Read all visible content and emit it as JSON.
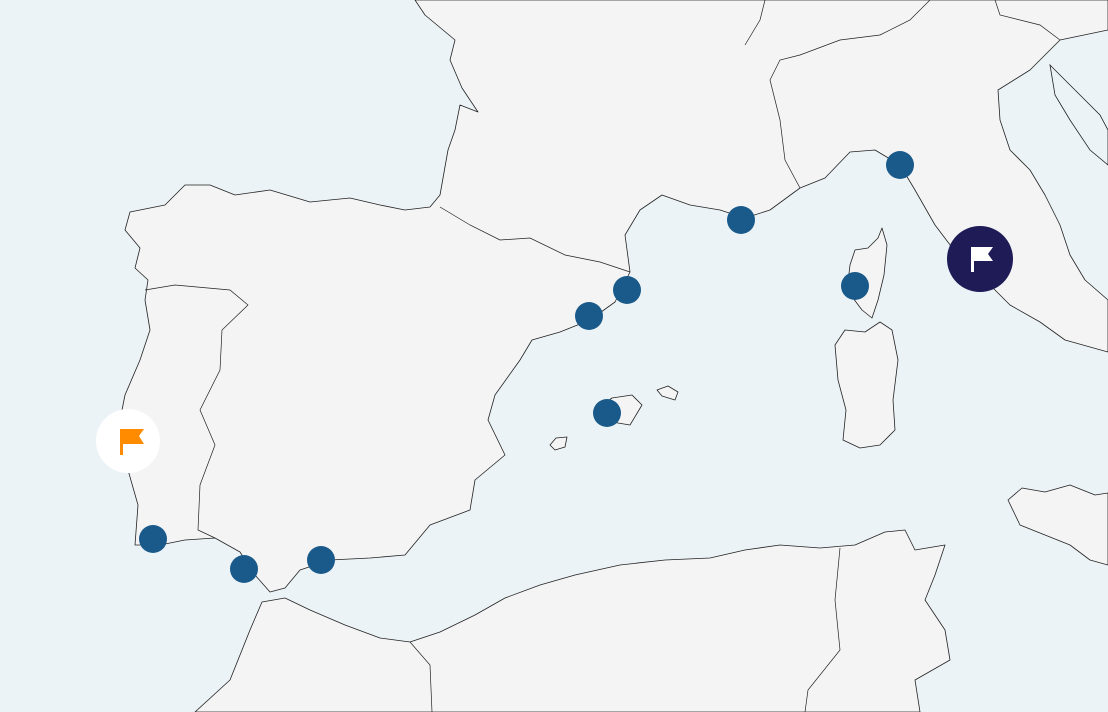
{
  "map": {
    "colors": {
      "land": "#f4f4f4",
      "sea": "#ebf3f7",
      "port_marker": "#1a5a8a",
      "start_flag": "#ff8c00",
      "end_marker": "#1e1b57"
    },
    "port_markers": [
      {
        "name": "port-lisbon-area",
        "icon": "circle"
      },
      {
        "name": "port-gibraltar-area",
        "icon": "circle"
      },
      {
        "name": "port-malaga-area",
        "icon": "circle"
      },
      {
        "name": "port-valencia-area",
        "icon": "circle"
      },
      {
        "name": "port-barcelona-area",
        "icon": "circle"
      },
      {
        "name": "port-mallorca",
        "icon": "circle"
      },
      {
        "name": "port-marseille-area",
        "icon": "circle"
      },
      {
        "name": "port-genoa-area",
        "icon": "circle"
      },
      {
        "name": "port-corsica",
        "icon": "circle"
      }
    ],
    "start_marker": {
      "icon": "flag-icon",
      "color": "#ff8c00"
    },
    "end_marker": {
      "icon": "flag-icon",
      "color": "#1e1b57"
    }
  }
}
